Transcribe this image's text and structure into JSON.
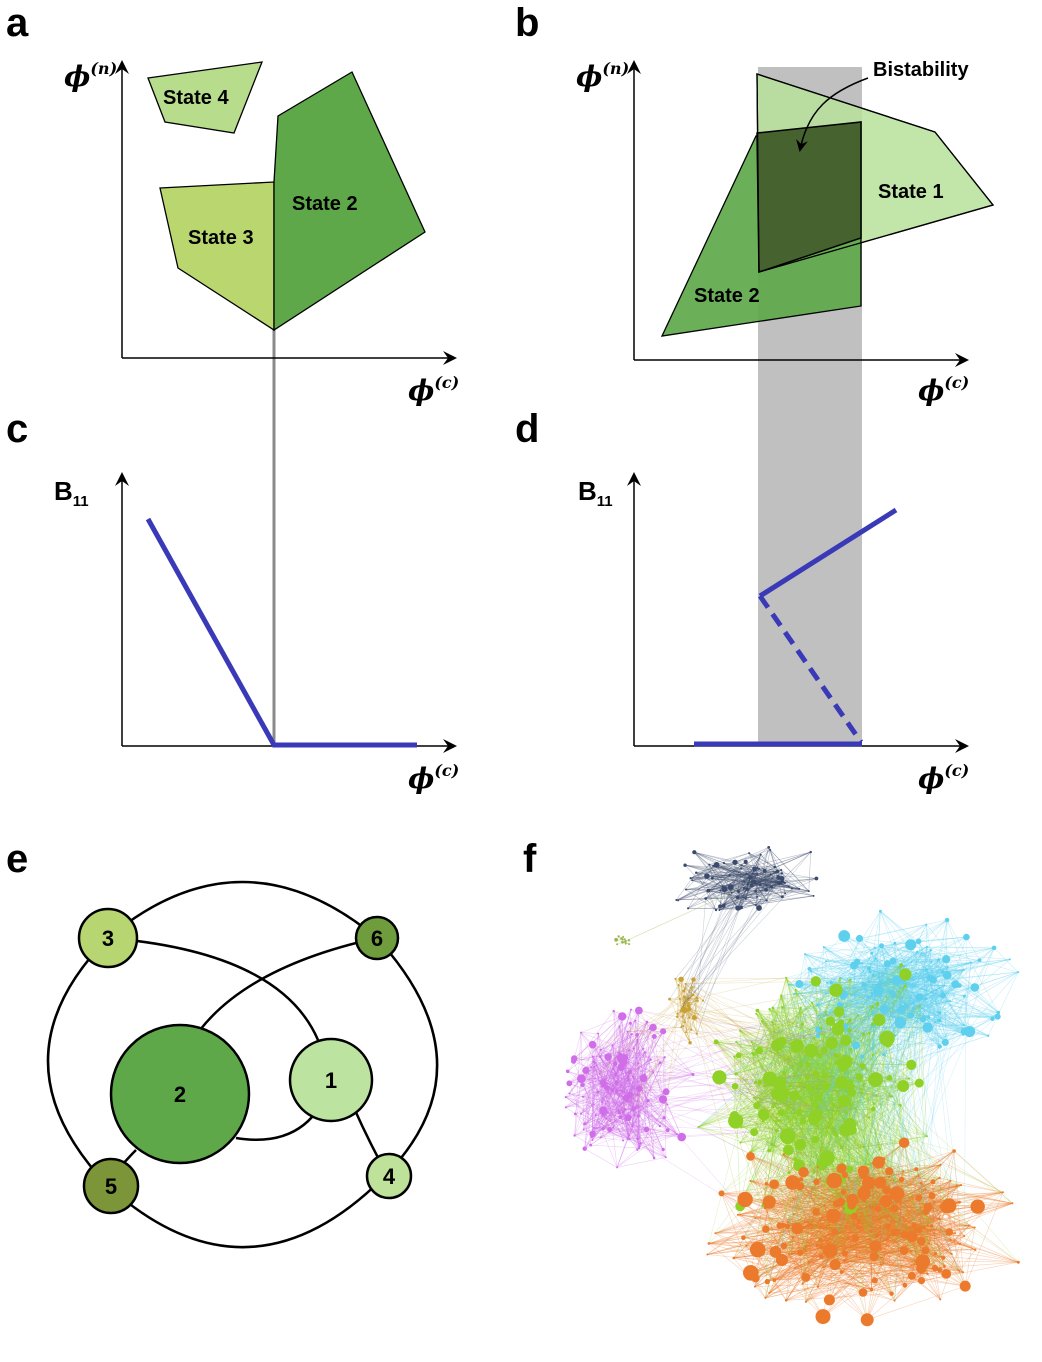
{
  "panels": {
    "a": {
      "letter": "a",
      "y_axis_symbol": "ϕ",
      "y_axis_sup": "(n)",
      "x_axis_symbol": "ϕ",
      "x_axis_sup": "(c)",
      "regions": [
        {
          "label": "State 4",
          "color": "#b7dc8c"
        },
        {
          "label": "State 3",
          "color": "#bad66e"
        },
        {
          "label": "State 2",
          "color": "#5ea84a"
        }
      ]
    },
    "b": {
      "letter": "b",
      "y_axis_symbol": "ϕ",
      "y_axis_sup": "(n)",
      "x_axis_symbol": "ϕ",
      "x_axis_sup": "(c)",
      "regions": [
        {
          "label": "State 1",
          "color": "#b7e09a"
        },
        {
          "label": "State 2",
          "color": "#5ea84a"
        }
      ],
      "overlap_color": "#46622f",
      "annotation": "Bistability",
      "band_color": "#c0c0c0"
    },
    "c": {
      "letter": "c",
      "y_axis_main": "B",
      "y_axis_sub": "11",
      "x_axis_symbol": "ϕ",
      "x_axis_sup": "(c)",
      "line_color": "#3a3ab8"
    },
    "d": {
      "letter": "d",
      "y_axis_main": "B",
      "y_axis_sub": "11",
      "x_axis_symbol": "ϕ",
      "x_axis_sup": "(c)",
      "line_color": "#3a3ab8"
    },
    "e": {
      "letter": "e",
      "nodes": [
        {
          "id": "3",
          "color": "#b7d671"
        },
        {
          "id": "6",
          "color": "#6f9c3d"
        },
        {
          "id": "2",
          "color": "#5ea84a"
        },
        {
          "id": "1",
          "color": "#bce3a0"
        },
        {
          "id": "5",
          "color": "#7c9538"
        },
        {
          "id": "4",
          "color": "#bfe29a"
        }
      ]
    },
    "f": {
      "letter": "f",
      "cluster_colors": [
        "#3b4a6b",
        "#9bb74e",
        "#c9a032",
        "#cf6ee8",
        "#5ed0ee",
        "#8fd126",
        "#ec7a2c"
      ]
    }
  }
}
